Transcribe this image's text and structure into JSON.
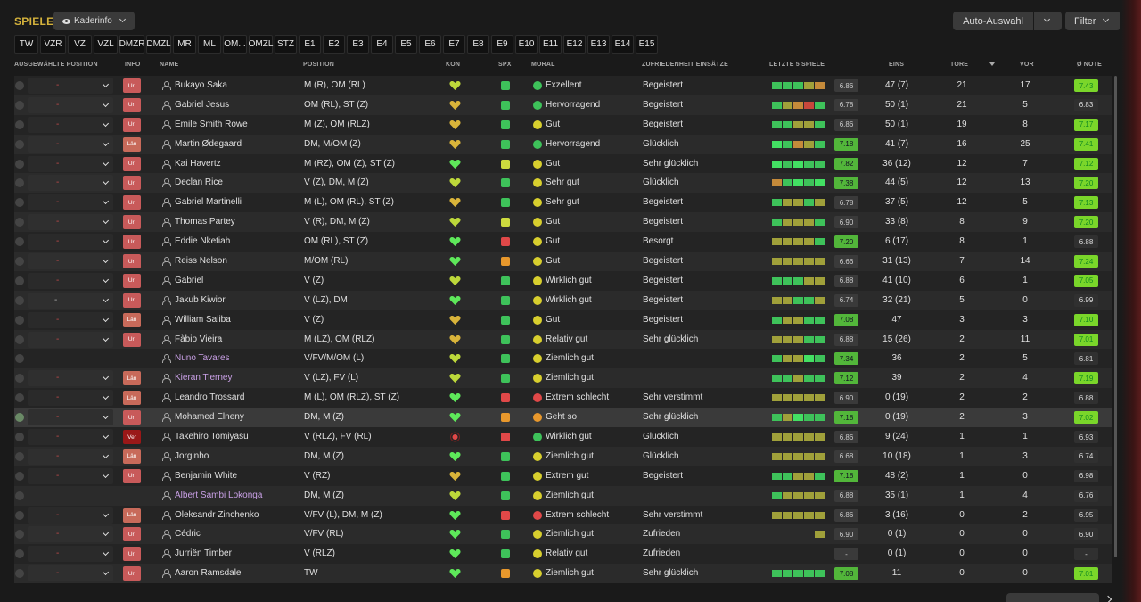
{
  "header": {
    "title": "SPIELER",
    "view_label": "Kaderinfo",
    "auto_label": "Auto-Auswahl",
    "filter_label": "Filter"
  },
  "position_filters": [
    "TW",
    "VZR",
    "VZ",
    "VZL",
    "DMZR",
    "DMZL",
    "MR",
    "ML",
    "OM...",
    "OMZL",
    "STZ",
    "E1",
    "E2",
    "E3",
    "E4",
    "E5",
    "E6",
    "E7",
    "E8",
    "E9",
    "E10",
    "E11",
    "E12",
    "E13",
    "E14",
    "E15"
  ],
  "columns": {
    "auswahl": "AUSGEWÄHLTE POSITION",
    "info": "INFO",
    "name": "NAME",
    "position": "POSITION",
    "kon": "KON",
    "spx": "SPX",
    "moral": "MORAL",
    "zufriedenheit": "ZUFRIEDENHEIT EINSÄTZE",
    "letzte5": "LETZTE 5 SPIELE",
    "eins": "EINS",
    "tore": "TORE",
    "vor": "VOR",
    "note": "Ø NOTE"
  },
  "colors": {
    "accent": "#d4b23c",
    "green": "#3ec25a",
    "red": "#e04848",
    "note_high": "#7ad62a"
  },
  "players": [
    {
      "sel": "-",
      "info": "Url",
      "name": "Bukayo Saka",
      "position": "M (R), OM (RL)",
      "kon": "#bdd83a",
      "spx": "up",
      "mdot": "g",
      "moral": "Exzellent",
      "zuf": "Begeistert",
      "bars": "gggyo",
      "r5": "6.86",
      "r5hi": false,
      "eins": "47 (7)",
      "tore": "21",
      "vor": "17",
      "note": "7.43",
      "notehi": true,
      "loan": false
    },
    {
      "sel": "-",
      "info": "Url",
      "name": "Gabriel Jesus",
      "position": "OM (RL), ST (Z)",
      "kon": "#d9b43a",
      "spx": "up",
      "mdot": "g",
      "moral": "Hervorragend",
      "zuf": "Begeistert",
      "bars": "gyorg",
      "r5": "6.78",
      "r5hi": false,
      "eins": "50 (1)",
      "tore": "21",
      "vor": "5",
      "note": "6.83",
      "notehi": false,
      "loan": false
    },
    {
      "sel": "-",
      "info": "Url",
      "name": "Emile Smith Rowe",
      "position": "M (Z), OM (RLZ)",
      "kon": "#d9b43a",
      "spx": "up",
      "mdot": "y",
      "moral": "Gut",
      "zuf": "Begeistert",
      "bars": "ggyyg",
      "r5": "6.86",
      "r5hi": false,
      "eins": "50 (1)",
      "tore": "19",
      "vor": "8",
      "note": "7.17",
      "notehi": true,
      "loan": false
    },
    {
      "sel": "-",
      "info": "Län",
      "name": "Martin Ødegaard",
      "position": "DM, M/OM (Z)",
      "kon": "#d9b43a",
      "spx": "up",
      "mdot": "g",
      "moral": "Hervorragend",
      "zuf": "Glücklich",
      "bars": "bgoyg",
      "r5": "7.18",
      "r5hi": true,
      "eins": "41 (7)",
      "tore": "16",
      "vor": "25",
      "note": "7.41",
      "notehi": true,
      "loan": false
    },
    {
      "sel": "-",
      "info": "Url",
      "name": "Kai Havertz",
      "position": "M (RZ), OM (Z), ST (Z)",
      "kon": "#5ee85a",
      "spx": "yel",
      "mdot": "y",
      "moral": "Gut",
      "zuf": "Sehr glücklich",
      "bars": "bgbgg",
      "r5": "7.82",
      "r5hi": true,
      "eins": "36 (12)",
      "tore": "12",
      "vor": "7",
      "note": "7.12",
      "notehi": true,
      "loan": false
    },
    {
      "sel": "-",
      "info": "Url",
      "name": "Declan Rice",
      "position": "V (Z), DM, M (Z)",
      "kon": "#bdd83a",
      "spx": "up",
      "mdot": "y",
      "moral": "Sehr gut",
      "zuf": "Glücklich",
      "bars": "ogbgb",
      "r5": "7.38",
      "r5hi": true,
      "eins": "44 (5)",
      "tore": "12",
      "vor": "13",
      "note": "7.20",
      "notehi": true,
      "loan": false
    },
    {
      "sel": "-",
      "info": "Url",
      "name": "Gabriel Martinelli",
      "position": "M (L), OM (RL), ST (Z)",
      "kon": "#d9b43a",
      "spx": "up",
      "mdot": "y",
      "moral": "Sehr gut",
      "zuf": "Begeistert",
      "bars": "gyygy",
      "r5": "6.78",
      "r5hi": false,
      "eins": "37 (5)",
      "tore": "12",
      "vor": "5",
      "note": "7.13",
      "notehi": true,
      "loan": false
    },
    {
      "sel": "-",
      "info": "Url",
      "name": "Thomas Partey",
      "position": "V (R), DM, M (Z)",
      "kon": "#bdd83a",
      "spx": "yel",
      "mdot": "y",
      "moral": "Gut",
      "zuf": "Begeistert",
      "bars": "gyyyg",
      "r5": "6.90",
      "r5hi": false,
      "eins": "33 (8)",
      "tore": "8",
      "vor": "9",
      "note": "7.20",
      "notehi": true,
      "loan": false
    },
    {
      "sel": "-",
      "info": "Url",
      "name": "Eddie Nketiah",
      "position": "OM (RL), ST (Z)",
      "kon": "#5ee85a",
      "spx": "down",
      "mdot": "y",
      "moral": "Gut",
      "zuf": "Besorgt",
      "bars": "yyyyg",
      "r5": "7.20",
      "r5hi": true,
      "eins": "6 (17)",
      "tore": "8",
      "vor": "1",
      "note": "6.88",
      "notehi": false,
      "loan": false
    },
    {
      "sel": "-",
      "info": "Url",
      "name": "Reiss Nelson",
      "position": "M/OM (RL)",
      "kon": "#5ee85a",
      "spx": "warn",
      "mdot": "y",
      "moral": "Gut",
      "zuf": "Begeistert",
      "bars": "yyyyy",
      "r5": "6.66",
      "r5hi": false,
      "eins": "31 (13)",
      "tore": "7",
      "vor": "14",
      "note": "7.24",
      "notehi": true,
      "loan": false
    },
    {
      "sel": "-",
      "info": "Url",
      "name": "Gabriel",
      "position": "V (Z)",
      "kon": "#bdd83a",
      "spx": "up",
      "mdot": "y",
      "moral": "Wirklich gut",
      "zuf": "Begeistert",
      "bars": "gggyy",
      "r5": "6.88",
      "r5hi": false,
      "eins": "41 (10)",
      "tore": "6",
      "vor": "1",
      "note": "7.05",
      "notehi": true,
      "loan": false
    },
    {
      "sel": "grey",
      "info": "Url",
      "name": "Jakub Kiwior",
      "position": "V (LZ), DM",
      "kon": "#5ee85a",
      "spx": "up",
      "mdot": "y",
      "moral": "Wirklich gut",
      "zuf": "Begeistert",
      "bars": "yyggy",
      "r5": "6.74",
      "r5hi": false,
      "eins": "32 (21)",
      "tore": "5",
      "vor": "0",
      "note": "6.99",
      "notehi": false,
      "loan": false
    },
    {
      "sel": "-",
      "info": "Län",
      "name": "William Saliba",
      "position": "V (Z)",
      "kon": "#d9b43a",
      "spx": "up",
      "mdot": "y",
      "moral": "Gut",
      "zuf": "Begeistert",
      "bars": "gyygg",
      "r5": "7.08",
      "r5hi": true,
      "eins": "47",
      "tore": "3",
      "vor": "3",
      "note": "7.10",
      "notehi": true,
      "loan": false
    },
    {
      "sel": "-",
      "info": "Url",
      "name": "Fàbio Vieira",
      "position": "M (LZ), OM (RLZ)",
      "kon": "#d9b43a",
      "spx": "up",
      "mdot": "y",
      "moral": "Relativ gut",
      "zuf": "Sehr glücklich",
      "bars": "yyygg",
      "r5": "6.88",
      "r5hi": false,
      "eins": "15 (26)",
      "tore": "2",
      "vor": "11",
      "note": "7.01",
      "notehi": true,
      "loan": false
    },
    {
      "sel": "none",
      "info": "",
      "name": "Nuno Tavares",
      "position": "V/FV/M/OM (L)",
      "kon": "#bdd83a",
      "spx": "up",
      "mdot": "y",
      "moral": "Ziemlich gut",
      "zuf": "",
      "bars": "gyybg",
      "r5": "7.34",
      "r5hi": true,
      "eins": "36",
      "tore": "2",
      "vor": "5",
      "note": "6.81",
      "notehi": false,
      "loan": true
    },
    {
      "sel": "-",
      "info": "Län",
      "name": "Kieran Tierney",
      "position": "V (LZ), FV (L)",
      "kon": "#bdd83a",
      "spx": "up",
      "mdot": "y",
      "moral": "Ziemlich gut",
      "zuf": "",
      "bars": "ggygg",
      "r5": "7.12",
      "r5hi": true,
      "eins": "39",
      "tore": "2",
      "vor": "4",
      "note": "7.19",
      "notehi": true,
      "loan": true
    },
    {
      "sel": "-",
      "info": "Län",
      "name": "Leandro Trossard",
      "position": "M (L), OM (RLZ), ST (Z)",
      "kon": "#5ee85a",
      "spx": "down",
      "mdot": "r",
      "moral": "Extrem schlecht",
      "zuf": "Sehr verstimmt",
      "bars": "yyyyy",
      "r5": "6.90",
      "r5hi": false,
      "eins": "0 (19)",
      "tore": "2",
      "vor": "2",
      "note": "6.88",
      "notehi": false,
      "loan": false
    },
    {
      "sel": "-",
      "info": "Url",
      "name": "Mohamed Elneny",
      "position": "DM, M (Z)",
      "kon": "#5ee85a",
      "spx": "warn",
      "mdot": "o",
      "moral": "Geht so",
      "zuf": "Sehr glücklich",
      "bars": "gybgg",
      "r5": "7.18",
      "r5hi": true,
      "eins": "0 (19)",
      "tore": "2",
      "vor": "3",
      "note": "7.02",
      "notehi": true,
      "loan": false,
      "selected": true
    },
    {
      "sel": "-",
      "info": "Ver",
      "name": "Takehiro Tomiyasu",
      "position": "V (RLZ), FV (RL)",
      "kon": "injury",
      "spx": "down",
      "mdot": "g",
      "moral": "Wirklich gut",
      "zuf": "Glücklich",
      "bars": "yyyyy",
      "r5": "6.86",
      "r5hi": false,
      "eins": "9 (24)",
      "tore": "1",
      "vor": "1",
      "note": "6.93",
      "notehi": false,
      "loan": false
    },
    {
      "sel": "-",
      "info": "Län",
      "name": "Jorginho",
      "position": "DM, M (Z)",
      "kon": "#5ee85a",
      "spx": "up",
      "mdot": "y",
      "moral": "Ziemlich gut",
      "zuf": "Glücklich",
      "bars": "yyyyy",
      "r5": "6.68",
      "r5hi": false,
      "eins": "10 (18)",
      "tore": "1",
      "vor": "3",
      "note": "6.74",
      "notehi": false,
      "loan": false
    },
    {
      "sel": "-",
      "info": "Url",
      "name": "Benjamin White",
      "position": "V (RZ)",
      "kon": "#d9b43a",
      "spx": "up",
      "mdot": "y",
      "moral": "Extrem gut",
      "zuf": "Begeistert",
      "bars": "ggyyg",
      "r5": "7.18",
      "r5hi": true,
      "eins": "48 (2)",
      "tore": "1",
      "vor": "0",
      "note": "6.98",
      "notehi": false,
      "loan": false
    },
    {
      "sel": "none",
      "info": "",
      "name": "Albert Sambi Lokonga",
      "position": "DM, M (Z)",
      "kon": "#bdd83a",
      "spx": "up",
      "mdot": "y",
      "moral": "Ziemlich gut",
      "zuf": "",
      "bars": "gyyyy",
      "r5": "6.88",
      "r5hi": false,
      "eins": "35 (1)",
      "tore": "1",
      "vor": "4",
      "note": "6.76",
      "notehi": false,
      "loan": true
    },
    {
      "sel": "-",
      "info": "Län",
      "name": "Oleksandr Zinchenko",
      "position": "V/FV (L), DM, M (Z)",
      "kon": "#5ee85a",
      "spx": "down",
      "mdot": "r",
      "moral": "Extrem schlecht",
      "zuf": "Sehr verstimmt",
      "bars": "yyyyy",
      "r5": "6.86",
      "r5hi": false,
      "eins": "3 (16)",
      "tore": "0",
      "vor": "2",
      "note": "6.95",
      "notehi": false,
      "loan": false
    },
    {
      "sel": "-",
      "info": "Url",
      "name": "Cédric",
      "position": "V/FV (RL)",
      "kon": "#5ee85a",
      "spx": "up",
      "mdot": "y",
      "moral": "Ziemlich gut",
      "zuf": "Zufrieden",
      "bars": "eeeey",
      "r5": "6.90",
      "r5hi": false,
      "eins": "0 (1)",
      "tore": "0",
      "vor": "0",
      "note": "6.90",
      "notehi": false,
      "loan": false
    },
    {
      "sel": "-",
      "info": "Url",
      "name": "Jurriën Timber",
      "position": "V (RLZ)",
      "kon": "#5ee85a",
      "spx": "up",
      "mdot": "y",
      "moral": "Relativ gut",
      "zuf": "Zufrieden",
      "bars": "eeeee",
      "r5": "-",
      "r5hi": false,
      "eins": "0 (1)",
      "tore": "0",
      "vor": "0",
      "note": "-",
      "notehi": false,
      "loan": false
    },
    {
      "sel": "-",
      "info": "Url",
      "name": "Aaron Ramsdale",
      "position": "TW",
      "kon": "#5ee85a",
      "spx": "warn",
      "mdot": "y",
      "moral": "Ziemlich gut",
      "zuf": "Sehr glücklich",
      "bars": "ggggg",
      "r5": "7.08",
      "r5hi": true,
      "eins": "11",
      "tore": "0",
      "vor": "0",
      "note": "7.01",
      "notehi": true,
      "loan": false
    }
  ]
}
